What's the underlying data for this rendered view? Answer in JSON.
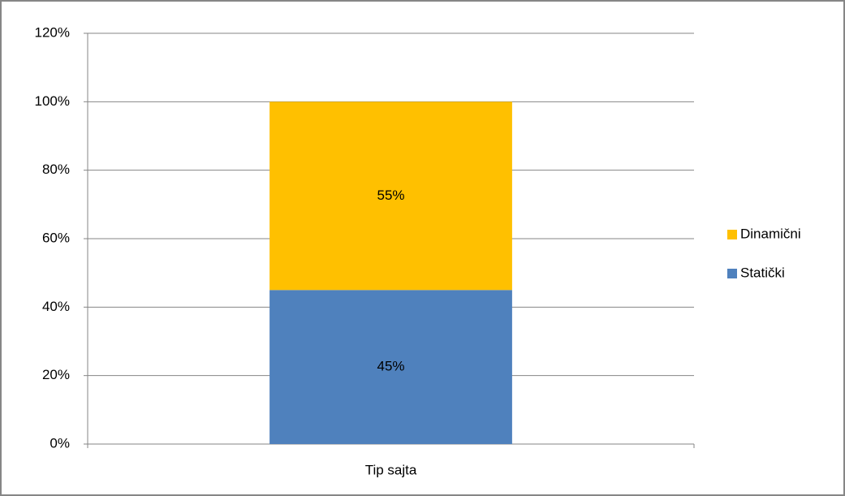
{
  "chart_data": {
    "type": "bar",
    "stacked": true,
    "categories": [
      "Tip sajta"
    ],
    "series": [
      {
        "name": "Statički",
        "color": "#4f81bd",
        "values": [
          45
        ],
        "value_labels": [
          "45%"
        ]
      },
      {
        "name": "Dinamični",
        "color": "#ffc000",
        "values": [
          55
        ],
        "value_labels": [
          "55%"
        ]
      }
    ],
    "ylim": [
      0,
      120
    ],
    "yticks": [
      {
        "value": 0,
        "label": "0%"
      },
      {
        "value": 20,
        "label": "20%"
      },
      {
        "value": 40,
        "label": "40%"
      },
      {
        "value": 60,
        "label": "60%"
      },
      {
        "value": 80,
        "label": "80%"
      },
      {
        "value": 100,
        "label": "100%"
      },
      {
        "value": 120,
        "label": "120%"
      }
    ],
    "grid": true,
    "legend": "right"
  }
}
